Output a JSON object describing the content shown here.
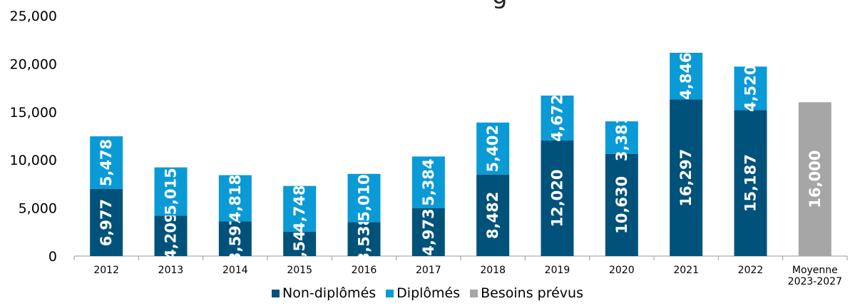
{
  "chart_data": {
    "type": "bar",
    "stacked": true,
    "title_fragment": "g",
    "categories": [
      "2012",
      "2013",
      "2014",
      "2015",
      "2016",
      "2017",
      "2018",
      "2019",
      "2020",
      "2021",
      "2022",
      "Moyenne 2023-2027"
    ],
    "series": [
      {
        "name": "Non-diplômés",
        "color": "#00527A",
        "values": [
          6977,
          4209,
          3597,
          2546,
          3538,
          4973,
          8482,
          12020,
          10630,
          16297,
          15187,
          null
        ],
        "labels": [
          "6,977",
          "4,209",
          "3,597",
          "2,546",
          "3,538",
          "4,973",
          "8,482",
          "12,020",
          "10,630",
          "16,297",
          "15,187",
          ""
        ]
      },
      {
        "name": "Diplômés",
        "color": "#0A9AD6",
        "values": [
          5478,
          5015,
          4818,
          4748,
          5010,
          5384,
          5402,
          4672,
          3381,
          4846,
          4520,
          null
        ],
        "labels": [
          "5,478",
          "5,015",
          "4,818",
          "4,748",
          "5,010",
          "5,384",
          "5,402",
          "4,672",
          "3,381",
          "4,846",
          "4,520",
          ""
        ]
      },
      {
        "name": "Besoins prévus",
        "color": "#A6A6A6",
        "values": [
          null,
          null,
          null,
          null,
          null,
          null,
          null,
          null,
          null,
          null,
          null,
          16000
        ],
        "labels": [
          "",
          "",
          "",
          "",
          "",
          "",
          "",
          "",
          "",
          "",
          "",
          "16,000"
        ]
      }
    ],
    "yticks": [
      "0",
      "5,000",
      "10,000",
      "15,000",
      "20,000",
      "25,000"
    ],
    "ylim": [
      0,
      25000
    ],
    "grid": false,
    "legend_position": "bottom"
  }
}
